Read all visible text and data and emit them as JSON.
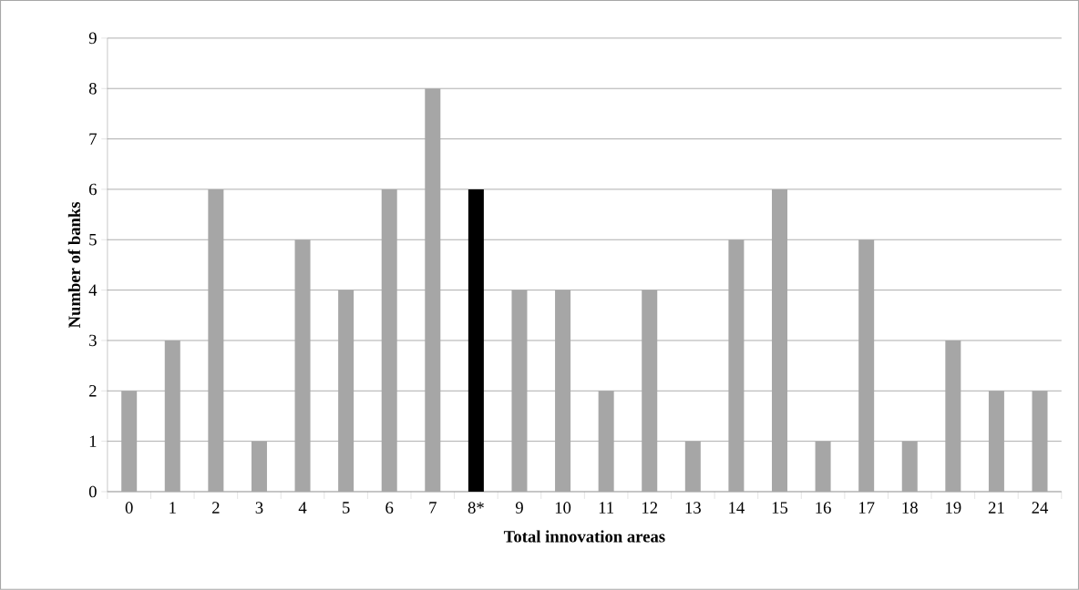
{
  "chart_data": {
    "type": "bar",
    "xlabel": "Total innovation areas",
    "ylabel": "Number of banks",
    "categories": [
      "0",
      "1",
      "2",
      "3",
      "4",
      "5",
      "6",
      "7",
      "8*",
      "9",
      "10",
      "11",
      "12",
      "13",
      "14",
      "15",
      "16",
      "17",
      "18",
      "19",
      "21",
      "24"
    ],
    "values": [
      2,
      3,
      6,
      1,
      5,
      4,
      6,
      8,
      6,
      4,
      4,
      2,
      4,
      1,
      5,
      6,
      1,
      5,
      1,
      3,
      2,
      2
    ],
    "colors": [
      "#a6a6a6",
      "#a6a6a6",
      "#a6a6a6",
      "#a6a6a6",
      "#a6a6a6",
      "#a6a6a6",
      "#a6a6a6",
      "#a6a6a6",
      "#000000",
      "#a6a6a6",
      "#a6a6a6",
      "#a6a6a6",
      "#a6a6a6",
      "#a6a6a6",
      "#a6a6a6",
      "#a6a6a6",
      "#a6a6a6",
      "#a6a6a6",
      "#a6a6a6",
      "#a6a6a6",
      "#a6a6a6",
      "#a6a6a6"
    ],
    "ylim": [
      0,
      9
    ],
    "yticks": [
      0,
      1,
      2,
      3,
      4,
      5,
      6,
      7,
      8,
      9
    ],
    "grid": "y"
  }
}
